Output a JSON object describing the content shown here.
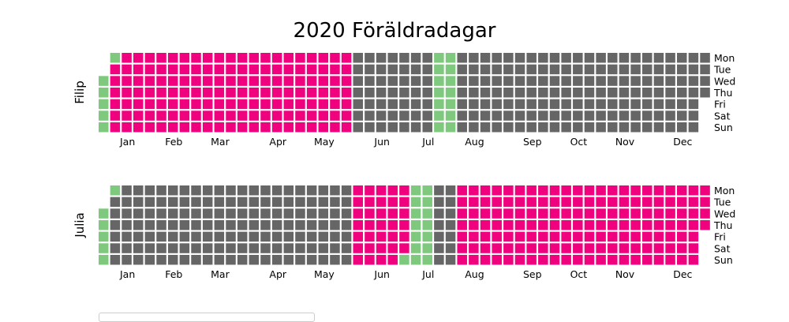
{
  "title": "2020 Föräldradagar",
  "chart_data": {
    "type": "heatmap",
    "title": "2020 Föräldradagar",
    "year": 2020,
    "colors": {
      "holiday": "#7fc97f",
      "parental_leave": "#f0027f",
      "other": "#666666"
    },
    "weekday_labels": [
      "Mon",
      "Tue",
      "Wed",
      "Thu",
      "Fri",
      "Sat",
      "Sun"
    ],
    "month_labels": [
      "Jan",
      "Feb",
      "Mar",
      "Apr",
      "May",
      "Jun",
      "Jul",
      "Aug",
      "Sep",
      "Oct",
      "Nov",
      "Dec"
    ],
    "grid": false,
    "legend": "bottom-left",
    "panels": [
      {
        "ylabel": "Filip",
        "periods": [
          {
            "status": "holiday",
            "start": "2020-01-01",
            "end": "2020-01-06"
          },
          {
            "status": "parental_leave",
            "start": "2020-01-07",
            "end": "2020-05-31"
          },
          {
            "status": "holiday",
            "start": "2020-07-20",
            "end": "2020-08-02"
          }
        ]
      },
      {
        "ylabel": "Julia",
        "periods": [
          {
            "status": "holiday",
            "start": "2020-01-01",
            "end": "2020-01-06"
          },
          {
            "status": "parental_leave",
            "start": "2020-06-01",
            "end": "2020-07-04"
          },
          {
            "status": "holiday",
            "start": "2020-07-05",
            "end": "2020-07-19"
          },
          {
            "status": "parental_leave",
            "start": "2020-08-03",
            "end": "2020-12-31"
          }
        ]
      }
    ]
  }
}
